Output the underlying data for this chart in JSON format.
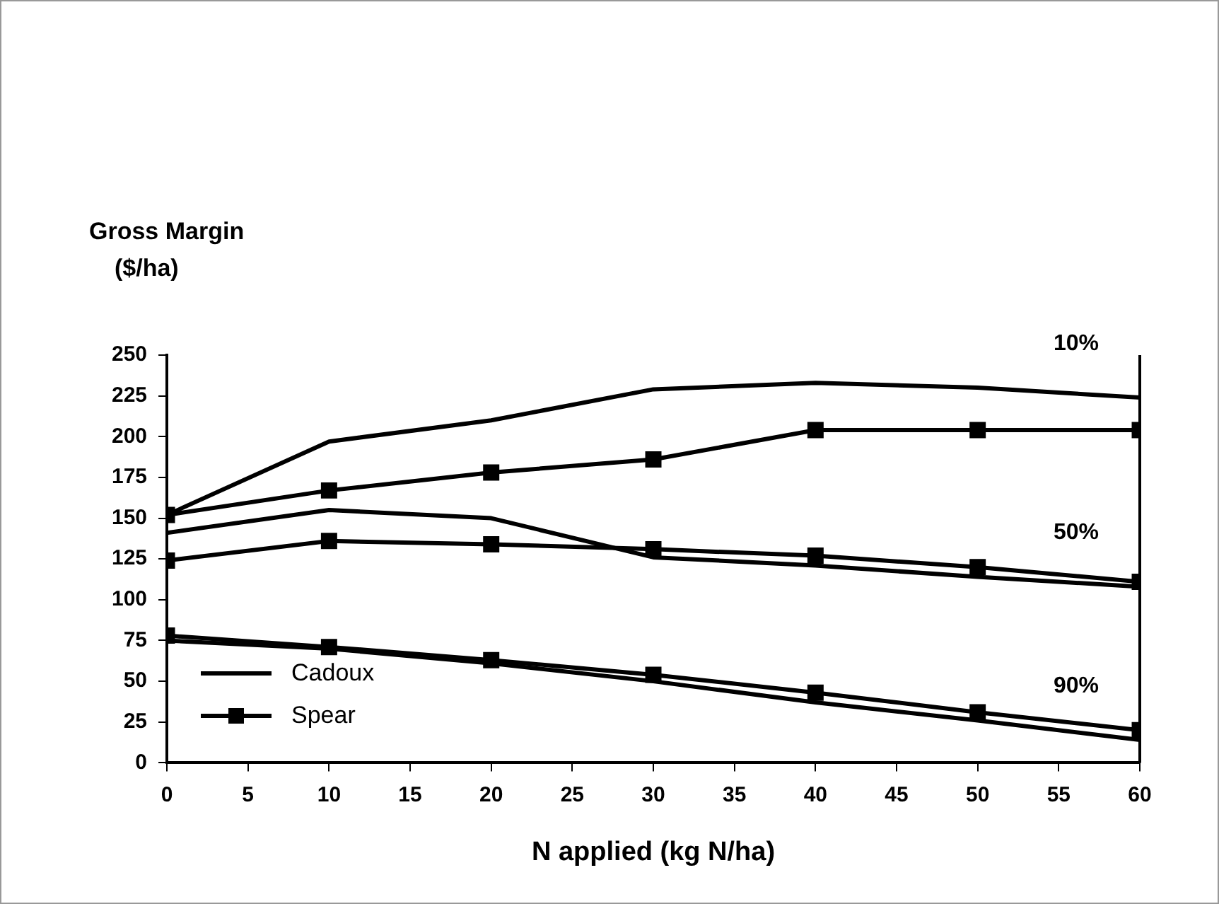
{
  "chart_data": {
    "type": "line",
    "ylabel": "Gross Margin\n($/ha)",
    "xlabel": "N applied (kg N/ha)",
    "x": [
      0,
      10,
      20,
      30,
      40,
      50,
      60
    ],
    "xlim": [
      0,
      60
    ],
    "xticks": [
      0,
      5,
      10,
      15,
      20,
      25,
      30,
      35,
      40,
      45,
      50,
      55,
      60
    ],
    "ylim": [
      0,
      250
    ],
    "yticks": [
      0,
      25,
      50,
      75,
      100,
      125,
      150,
      175,
      200,
      225,
      250
    ],
    "grid": false,
    "legend": "bottom left",
    "line_style": "solid",
    "series": [
      {
        "name": "Cadoux",
        "color": "#000000",
        "marker": "none",
        "values": [
          152,
          197,
          210,
          229,
          233,
          230,
          224
        ]
      },
      {
        "name": "Spear",
        "color": "#000000",
        "marker": "square",
        "values": [
          152,
          167,
          178,
          186,
          204,
          204,
          204
        ]
      },
      {
        "color": "#000000",
        "marker": "none",
        "values": [
          141,
          155,
          150,
          126,
          121,
          114,
          108
        ]
      },
      {
        "color": "#000000",
        "marker": "square",
        "values": [
          124,
          136,
          134,
          131,
          127,
          120,
          111
        ]
      },
      {
        "color": "#000000",
        "marker": "none",
        "values": [
          75,
          70,
          61,
          50,
          37,
          26,
          14
        ]
      },
      {
        "color": "#000000",
        "marker": "square",
        "values": [
          78,
          71,
          63,
          54,
          43,
          31,
          20
        ]
      }
    ],
    "annotations": [
      "10%",
      "50%",
      "90%"
    ]
  }
}
